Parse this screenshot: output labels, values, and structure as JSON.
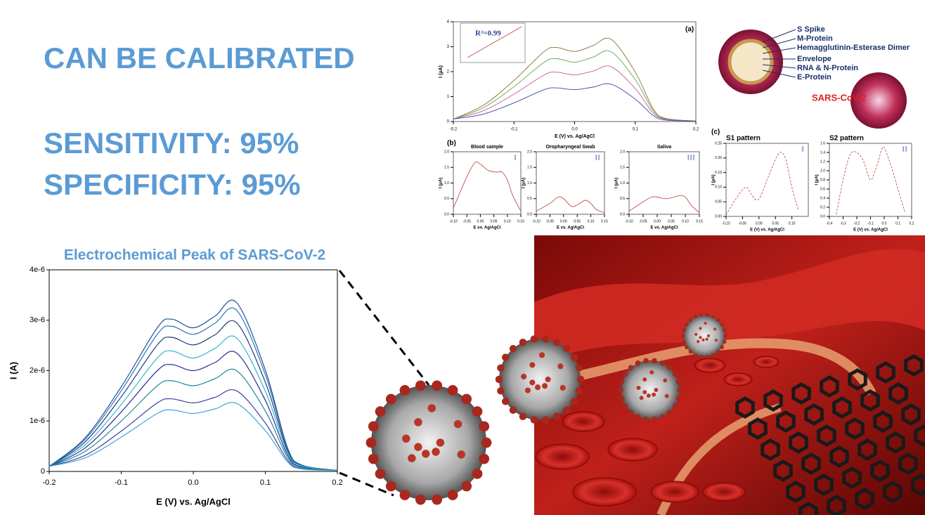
{
  "headline": {
    "line1": "CAN BE CALIBRATED",
    "line2": "SENSITIVITY: 95%",
    "line3": "SPECIFICITY: 95%"
  },
  "inset_labels": {
    "panel_a": "(a)",
    "panel_b": "(b)",
    "panel_c": "(c)"
  },
  "virus_diagram": {
    "labels": [
      "S Spike",
      "M-Protein",
      "Hemagglutinin-Esterase Dimer",
      "Envelope",
      "RNA & N-Protein",
      "E-Protein"
    ],
    "title": "SARS-CoV-2"
  },
  "chart_data": [
    {
      "type": "line",
      "title": "Electrochemical Peak of SARS-CoV-2",
      "xlabel": "E (V) vs. Ag/AgCl",
      "ylabel": "I (A)",
      "xlim": [
        -0.2,
        0.2
      ],
      "ylim": [
        0,
        4e-06
      ],
      "xticks": [
        -0.2,
        -0.1,
        {
          "value": 0,
          "label": "0.0"
        },
        0.1,
        0.2
      ],
      "yticks": [
        0,
        {
          "value": 1e-06,
          "label": "1e-6"
        },
        {
          "value": 2e-06,
          "label": "2e-6"
        },
        {
          "value": 3e-06,
          "label": "3e-6"
        },
        {
          "value": 4e-06,
          "label": "4e-6"
        }
      ],
      "x": [
        -0.2,
        -0.15,
        -0.1,
        -0.05,
        -0.03,
        0,
        0.03,
        0.06,
        0.1,
        0.13,
        0.15,
        0.2
      ],
      "series": [
        {
          "color": "#1f4e9c",
          "values": [
            1e-07,
            6.7e-07,
            1.68e-06,
            2.85e-06,
            3.02e-06,
            2.85e-06,
            3.08e-06,
            3.35e-06,
            2.01e-06,
            5e-07,
            1.3e-07,
            2e-08
          ]
        },
        {
          "color": "#2e75b6",
          "values": [
            1e-07,
            6.4e-07,
            1.6e-06,
            2.72e-06,
            2.88e-06,
            2.72e-06,
            2.94e-06,
            3.2e-06,
            1.92e-06,
            4.8e-07,
            1.3e-07,
            2e-08
          ]
        },
        {
          "color": "#1f3a7a",
          "values": [
            1e-07,
            5.9e-07,
            1.48e-06,
            2.51e-06,
            2.66e-06,
            2.51e-06,
            2.71e-06,
            2.95e-06,
            1.77e-06,
            4.4e-07,
            1.2e-07,
            2e-08
          ]
        },
        {
          "color": "#36b5c9",
          "values": [
            1e-07,
            5.3e-07,
            1.33e-06,
            2.25e-06,
            2.39e-06,
            2.25e-06,
            2.44e-06,
            2.65e-06,
            1.59e-06,
            4e-07,
            1.1e-07,
            2e-08
          ]
        },
        {
          "color": "#2b2f8f",
          "values": [
            1e-07,
            4.7e-07,
            1.18e-06,
            2e-06,
            2.12e-06,
            2e-06,
            2.16e-06,
            2.35e-06,
            1.41e-06,
            3.5e-07,
            9e-08,
            2e-08
          ]
        },
        {
          "color": "#1d8a9a",
          "values": [
            1e-07,
            4e-07,
            1e-06,
            1.7e-06,
            1.8e-06,
            1.7e-06,
            1.84e-06,
            2e-06,
            1.2e-06,
            3e-07,
            8e-08,
            2e-08
          ]
        },
        {
          "color": "#3a3f9f",
          "values": [
            1e-07,
            3.2e-07,
            8e-07,
            1.36e-06,
            1.44e-06,
            1.36e-06,
            1.47e-06,
            1.6e-06,
            9.6e-07,
            2.4e-07,
            6e-08,
            2e-08
          ]
        },
        {
          "color": "#4a9fd8",
          "values": [
            1e-07,
            2.7e-07,
            6.8e-07,
            1.15e-06,
            1.22e-06,
            1.15e-06,
            1.24e-06,
            1.35e-06,
            8.1e-07,
            2e-07,
            5e-08,
            2e-08
          ]
        }
      ]
    },
    {
      "type": "line",
      "xlabel": "E (V) vs. Ag/AgCl",
      "ylabel": "I (μA)",
      "annotation": "R²=0.99",
      "xlim": [
        -0.2,
        0.2
      ],
      "ylim": [
        0,
        4
      ],
      "xticks": [
        -0.2,
        -0.1,
        {
          "value": 0,
          "label": "0.0"
        },
        0.1,
        0.2
      ],
      "yticks": [
        0,
        1,
        2,
        3,
        4
      ],
      "x": [
        -0.2,
        -0.15,
        -0.1,
        -0.05,
        -0.03,
        0,
        0.03,
        0.06,
        0.1,
        0.13,
        0.15,
        0.2
      ],
      "series": [
        {
          "color": "#8a6d2a",
          "values": [
            0.1,
            0.66,
            1.65,
            2.81,
            2.97,
            2.81,
            3.04,
            3.3,
            1.98,
            0.5,
            0.13,
            0.02
          ]
        },
        {
          "color": "#5aa84a",
          "values": [
            0.1,
            0.56,
            1.4,
            2.38,
            2.52,
            2.38,
            2.58,
            2.8,
            1.68,
            0.42,
            0.11,
            0.02
          ]
        },
        {
          "color": "#c85a9a",
          "values": [
            0.1,
            0.44,
            1.1,
            1.87,
            1.98,
            1.87,
            2.02,
            2.2,
            1.32,
            0.33,
            0.09,
            0.02
          ]
        },
        {
          "color": "#3a4aa8",
          "values": [
            0.1,
            0.3,
            0.75,
            1.28,
            1.35,
            1.28,
            1.38,
            1.5,
            0.9,
            0.23,
            0.06,
            0.02
          ]
        }
      ]
    },
    {
      "type": "line",
      "title": "Blood sample",
      "xlabel": "E vs. Ag/AgCl",
      "ylabel": "I (μA)",
      "annotation": "I",
      "xlim": [
        -0.1,
        0.15
      ],
      "ylim": [
        0,
        2
      ],
      "xticks": [
        {
          "value": -0.1,
          "label": "-0.10"
        },
        -0.05,
        {
          "value": 0,
          "label": "0.00"
        },
        0.05,
        {
          "value": 0.1,
          "label": "0.10"
        },
        0.15
      ],
      "yticks": [
        {
          "value": 0,
          "label": "0.0"
        },
        0.5,
        {
          "value": 1,
          "label": "1.0"
        },
        1.5,
        {
          "value": 2,
          "label": "2.0"
        }
      ],
      "x": [
        -0.1,
        -0.05,
        -0.02,
        0,
        0.03,
        0.06,
        0.08,
        0.1,
        0.12,
        0.15
      ],
      "series": [
        {
          "color": "#c0504d",
          "values": [
            0.2,
            1.2,
            1.65,
            1.6,
            1.4,
            1.35,
            1.35,
            1.1,
            0.6,
            0.1
          ]
        }
      ]
    },
    {
      "type": "line",
      "title": "Oropharyngeal Swab",
      "xlabel": "E vs. Ag/AgCl",
      "ylabel": "I (μA)",
      "annotation": "II",
      "xlim": [
        -0.1,
        0.15
      ],
      "ylim": [
        0,
        2
      ],
      "xticks": [
        {
          "value": -0.1,
          "label": "-0.10"
        },
        -0.05,
        {
          "value": 0,
          "label": "0.00"
        },
        0.05,
        {
          "value": 0.1,
          "label": "0.10"
        },
        0.15
      ],
      "yticks": [
        {
          "value": 0,
          "label": "0.0"
        },
        0.5,
        {
          "value": 1,
          "label": "1.0"
        },
        1.5,
        {
          "value": 2,
          "label": "2.0"
        }
      ],
      "x": [
        -0.1,
        -0.05,
        -0.02,
        0,
        0.03,
        0.06,
        0.08,
        0.1,
        0.12,
        0.15
      ],
      "series": [
        {
          "color": "#c0504d",
          "values": [
            0.1,
            0.35,
            0.55,
            0.5,
            0.25,
            0.35,
            0.45,
            0.35,
            0.15,
            0.05
          ]
        }
      ]
    },
    {
      "type": "line",
      "title": "Saliva",
      "xlabel": "E vs. Ag/AgCl",
      "ylabel": "I (μA)",
      "annotation": "III",
      "xlim": [
        -0.1,
        0.15
      ],
      "ylim": [
        0,
        2
      ],
      "xticks": [
        {
          "value": -0.1,
          "label": "-0.10"
        },
        -0.05,
        {
          "value": 0,
          "label": "0.00"
        },
        0.05,
        {
          "value": 0.1,
          "label": "0.10"
        },
        0.15
      ],
      "yticks": [
        {
          "value": 0,
          "label": "0.0"
        },
        0.5,
        {
          "value": 1,
          "label": "1.0"
        },
        1.5,
        {
          "value": 2,
          "label": "2.0"
        }
      ],
      "x": [
        -0.1,
        -0.05,
        -0.02,
        0,
        0.03,
        0.06,
        0.08,
        0.1,
        0.12,
        0.15
      ],
      "series": [
        {
          "color": "#c0504d",
          "values": [
            0.1,
            0.4,
            0.55,
            0.55,
            0.5,
            0.55,
            0.6,
            0.55,
            0.3,
            0.05
          ]
        }
      ]
    },
    {
      "type": "line",
      "title": "S1 pattern",
      "xlabel": "E (V) vs. Ag/AgCl",
      "ylabel": "I (μA)",
      "annotation": "I",
      "line_style": "dashed",
      "xlim": [
        -0.1,
        0.15
      ],
      "ylim": [
        0,
        0.25
      ],
      "xticks": [
        {
          "value": -0.1,
          "label": "-0.10"
        },
        -0.05,
        {
          "value": 0,
          "label": "0.00"
        },
        0.05,
        {
          "value": 0.1,
          "label": "0.10"
        }
      ],
      "yticks": [
        {
          "value": 0,
          "label": "0.00"
        },
        0.05,
        {
          "value": 0.1,
          "label": "0.10"
        },
        0.15,
        {
          "value": 0.2,
          "label": "0.20"
        },
        0.25
      ],
      "x": [
        -0.1,
        -0.07,
        -0.04,
        -0.02,
        0,
        0.03,
        0.06,
        0.08,
        0.1,
        0.12
      ],
      "series": [
        {
          "color": "#c0504d",
          "values": [
            0.005,
            0.06,
            0.1,
            0.07,
            0.06,
            0.14,
            0.215,
            0.2,
            0.1,
            0.02
          ]
        }
      ]
    },
    {
      "type": "line",
      "title": "S2 pattern",
      "xlabel": "E (V) vs. Ag/AgCl",
      "ylabel": "I (μA)",
      "annotation": "II",
      "line_style": "dashed",
      "xlim": [
        -0.4,
        0.2
      ],
      "ylim": [
        0,
        1.6
      ],
      "xticks": [
        -0.4,
        -0.3,
        -0.2,
        -0.1,
        {
          "value": 0,
          "label": "0.0"
        },
        0.1,
        0.2
      ],
      "yticks": [
        {
          "value": 0,
          "label": "0.0"
        },
        0.2,
        0.4,
        0.6,
        0.8,
        {
          "value": 1,
          "label": "1.0"
        },
        1.2,
        1.4,
        1.6
      ],
      "x": [
        -0.35,
        -0.3,
        -0.25,
        -0.2,
        -0.15,
        -0.1,
        -0.05,
        -0.02,
        0,
        0.05,
        0.1,
        0.15
      ],
      "series": [
        {
          "color": "#c0504d",
          "values": [
            0.05,
            0.8,
            1.35,
            1.4,
            1.2,
            0.8,
            1.15,
            1.45,
            1.5,
            1.1,
            0.6,
            0.1
          ]
        }
      ]
    }
  ]
}
